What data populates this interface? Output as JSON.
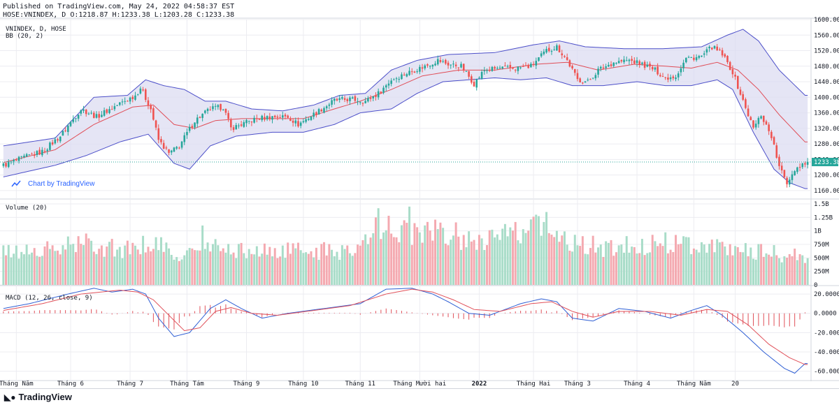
{
  "header": {
    "published": "Published on TradingView.com, May 24, 2022 04:58:37 EST",
    "ohlc": "HOSE:VNINDEX, D O:1218.87 H:1233.38 L:1203.28 C:1233.38"
  },
  "colors": {
    "up": "#26a69a",
    "down": "#ef5350",
    "up_vol": "#a8dcc8",
    "down_vol": "#f4a9b0",
    "bb_band": "#4c4fc9",
    "bb_fill": "#dcdcf2",
    "bb_basis": "#e04d57",
    "macd": "#2f5fd4",
    "signal": "#e05059",
    "grid": "#ececf1",
    "price_line": "#26a69a"
  },
  "footer": {
    "brand": "TradingView"
  },
  "watermark": "Chart by TradingView",
  "chart_data": [
    {
      "type": "candlestick",
      "title": "VNINDEX, D, HOSE",
      "indicator": "BB (20, 2)",
      "ylim": [
        1140,
        1600
      ],
      "yticks": [
        1160,
        1200,
        1240,
        1280,
        1320,
        1360,
        1400,
        1440,
        1480,
        1520,
        1560,
        1600
      ],
      "ytick_labels": [
        "1160.00",
        "1200.00",
        "1240.00",
        "1280.00",
        "1320.00",
        "1360.00",
        "1400.00",
        "1440.00",
        "1480.00",
        "1520.00",
        "1560.00",
        "1600.00"
      ],
      "last_price": 1233.38,
      "last_price_label": "1233.38",
      "price_anchors": [
        [
          0,
          1225
        ],
        [
          8,
          1245
        ],
        [
          15,
          1260
        ],
        [
          22,
          1300
        ],
        [
          30,
          1370
        ],
        [
          36,
          1350
        ],
        [
          44,
          1380
        ],
        [
          51,
          1405
        ],
        [
          53,
          1425
        ],
        [
          57,
          1370
        ],
        [
          60,
          1290
        ],
        [
          64,
          1255
        ],
        [
          68,
          1275
        ],
        [
          74,
          1340
        ],
        [
          80,
          1370
        ],
        [
          85,
          1375
        ],
        [
          88,
          1320
        ],
        [
          92,
          1330
        ],
        [
          98,
          1345
        ],
        [
          104,
          1350
        ],
        [
          110,
          1350
        ],
        [
          114,
          1330
        ],
        [
          122,
          1365
        ],
        [
          128,
          1392
        ],
        [
          134,
          1395
        ],
        [
          140,
          1390
        ],
        [
          145,
          1410
        ],
        [
          150,
          1445
        ],
        [
          157,
          1465
        ],
        [
          163,
          1480
        ],
        [
          168,
          1495
        ],
        [
          172,
          1485
        ],
        [
          177,
          1480
        ],
        [
          182,
          1435
        ],
        [
          186,
          1470
        ],
        [
          192,
          1475
        ],
        [
          198,
          1475
        ],
        [
          204,
          1480
        ],
        [
          210,
          1520
        ],
        [
          214,
          1530
        ],
        [
          218,
          1495
        ],
        [
          222,
          1445
        ],
        [
          226,
          1440
        ],
        [
          230,
          1470
        ],
        [
          236,
          1490
        ],
        [
          242,
          1495
        ],
        [
          247,
          1485
        ],
        [
          252,
          1470
        ],
        [
          256,
          1450
        ],
        [
          260,
          1455
        ],
        [
          264,
          1500
        ],
        [
          270,
          1505
        ],
        [
          274,
          1530
        ],
        [
          278,
          1510
        ],
        [
          282,
          1465
        ],
        [
          286,
          1390
        ],
        [
          290,
          1320
        ],
        [
          293,
          1355
        ],
        [
          297,
          1300
        ],
        [
          300,
          1220
        ],
        [
          303,
          1180
        ],
        [
          306,
          1215
        ],
        [
          310,
          1233.38
        ]
      ],
      "bb_upper_anchors": [
        [
          0,
          1275
        ],
        [
          20,
          1295
        ],
        [
          35,
          1400
        ],
        [
          48,
          1405
        ],
        [
          55,
          1445
        ],
        [
          62,
          1430
        ],
        [
          70,
          1420
        ],
        [
          78,
          1390
        ],
        [
          86,
          1390
        ],
        [
          96,
          1370
        ],
        [
          108,
          1365
        ],
        [
          120,
          1380
        ],
        [
          130,
          1405
        ],
        [
          140,
          1410
        ],
        [
          150,
          1470
        ],
        [
          160,
          1495
        ],
        [
          172,
          1510
        ],
        [
          190,
          1515
        ],
        [
          205,
          1535
        ],
        [
          215,
          1545
        ],
        [
          225,
          1530
        ],
        [
          240,
          1525
        ],
        [
          255,
          1525
        ],
        [
          270,
          1530
        ],
        [
          280,
          1560
        ],
        [
          286,
          1575
        ],
        [
          292,
          1545
        ],
        [
          300,
          1470
        ],
        [
          310,
          1405
        ]
      ],
      "bb_basis_anchors": [
        [
          0,
          1232
        ],
        [
          20,
          1265
        ],
        [
          35,
          1330
        ],
        [
          50,
          1375
        ],
        [
          58,
          1380
        ],
        [
          66,
          1330
        ],
        [
          74,
          1320
        ],
        [
          82,
          1340
        ],
        [
          92,
          1345
        ],
        [
          104,
          1345
        ],
        [
          116,
          1345
        ],
        [
          128,
          1370
        ],
        [
          138,
          1390
        ],
        [
          150,
          1420
        ],
        [
          162,
          1455
        ],
        [
          176,
          1470
        ],
        [
          190,
          1470
        ],
        [
          206,
          1485
        ],
        [
          218,
          1490
        ],
        [
          230,
          1470
        ],
        [
          244,
          1485
        ],
        [
          256,
          1480
        ],
        [
          266,
          1475
        ],
        [
          276,
          1490
        ],
        [
          284,
          1470
        ],
        [
          292,
          1420
        ],
        [
          300,
          1355
        ],
        [
          310,
          1285
        ]
      ],
      "bb_lower_anchors": [
        [
          0,
          1195
        ],
        [
          20,
          1225
        ],
        [
          32,
          1250
        ],
        [
          45,
          1285
        ],
        [
          56,
          1305
        ],
        [
          66,
          1230
        ],
        [
          72,
          1215
        ],
        [
          80,
          1275
        ],
        [
          90,
          1300
        ],
        [
          104,
          1310
        ],
        [
          116,
          1310
        ],
        [
          128,
          1330
        ],
        [
          138,
          1360
        ],
        [
          150,
          1370
        ],
        [
          160,
          1410
        ],
        [
          170,
          1440
        ],
        [
          180,
          1445
        ],
        [
          190,
          1450
        ],
        [
          200,
          1445
        ],
        [
          210,
          1450
        ],
        [
          220,
          1430
        ],
        [
          232,
          1430
        ],
        [
          245,
          1440
        ],
        [
          256,
          1430
        ],
        [
          266,
          1430
        ],
        [
          276,
          1445
        ],
        [
          282,
          1420
        ],
        [
          290,
          1310
        ],
        [
          298,
          1215
        ],
        [
          304,
          1180
        ],
        [
          310,
          1165
        ]
      ]
    },
    {
      "type": "bar",
      "title": "Volume (20)",
      "ylim": [
        0,
        1500000000
      ],
      "yticks": [
        0,
        250000000,
        500000000,
        750000000,
        1000000000,
        1250000000,
        1500000000
      ],
      "ytick_labels": [
        "0",
        "250M",
        "500M",
        "750M",
        "1B",
        "1.25B",
        "1.5B"
      ],
      "volume_anchors": [
        [
          0,
          600000000
        ],
        [
          20,
          650000000
        ],
        [
          30,
          780000000
        ],
        [
          50,
          650000000
        ],
        [
          58,
          820000000
        ],
        [
          66,
          520000000
        ],
        [
          80,
          700000000
        ],
        [
          96,
          620000000
        ],
        [
          110,
          640000000
        ],
        [
          130,
          620000000
        ],
        [
          143,
          850000000
        ],
        [
          150,
          1100000000
        ],
        [
          160,
          950000000
        ],
        [
          170,
          1000000000
        ],
        [
          180,
          850000000
        ],
        [
          190,
          900000000
        ],
        [
          200,
          950000000
        ],
        [
          210,
          1050000000
        ],
        [
          220,
          750000000
        ],
        [
          235,
          700000000
        ],
        [
          250,
          750000000
        ],
        [
          262,
          820000000
        ],
        [
          275,
          700000000
        ],
        [
          290,
          650000000
        ],
        [
          310,
          500000000
        ]
      ],
      "volume_spikes": [
        [
          77,
          1100000000
        ],
        [
          145,
          1420000000
        ],
        [
          157,
          1450000000
        ],
        [
          144,
          1250000000
        ],
        [
          206,
          1300000000
        ],
        [
          210,
          1350000000
        ]
      ]
    },
    {
      "type": "line",
      "title": "MACD (12, 26, close, 9)",
      "ylim": [
        -66,
        28
      ],
      "yticks": [
        20,
        0,
        -20,
        -40,
        -60
      ],
      "ytick_labels": [
        "20.0000",
        "0.0000",
        "-20.0000",
        "-40.0000",
        "-60.0000"
      ],
      "series": [
        {
          "name": "MACD",
          "anchors": [
            [
              0,
              5
            ],
            [
              10,
              10
            ],
            [
              25,
              20
            ],
            [
              35,
              26
            ],
            [
              42,
              22
            ],
            [
              50,
              25
            ],
            [
              55,
              20
            ],
            [
              60,
              -5
            ],
            [
              66,
              -24
            ],
            [
              72,
              -20
            ],
            [
              80,
              5
            ],
            [
              86,
              14
            ],
            [
              92,
              5
            ],
            [
              100,
              -5
            ],
            [
              110,
              0
            ],
            [
              124,
              5
            ],
            [
              138,
              10
            ],
            [
              148,
              25
            ],
            [
              158,
              26
            ],
            [
              166,
              20
            ],
            [
              172,
              12
            ],
            [
              180,
              0
            ],
            [
              188,
              -2
            ],
            [
              200,
              10
            ],
            [
              208,
              15
            ],
            [
              214,
              12
            ],
            [
              220,
              -5
            ],
            [
              228,
              -8
            ],
            [
              238,
              5
            ],
            [
              248,
              2
            ],
            [
              258,
              -5
            ],
            [
              266,
              3
            ],
            [
              272,
              8
            ],
            [
              278,
              -2
            ],
            [
              286,
              -20
            ],
            [
              294,
              -40
            ],
            [
              302,
              -57
            ],
            [
              306,
              -62
            ],
            [
              310,
              -52
            ]
          ]
        },
        {
          "name": "Signal",
          "anchors": [
            [
              0,
              3
            ],
            [
              15,
              10
            ],
            [
              30,
              20
            ],
            [
              45,
              24
            ],
            [
              52,
              22
            ],
            [
              58,
              14
            ],
            [
              64,
              -2
            ],
            [
              70,
              -18
            ],
            [
              76,
              -15
            ],
            [
              82,
              2
            ],
            [
              88,
              6
            ],
            [
              96,
              0
            ],
            [
              106,
              -2
            ],
            [
              120,
              3
            ],
            [
              134,
              8
            ],
            [
              148,
              20
            ],
            [
              158,
              25
            ],
            [
              166,
              22
            ],
            [
              174,
              14
            ],
            [
              182,
              4
            ],
            [
              192,
              2
            ],
            [
              204,
              10
            ],
            [
              212,
              12
            ],
            [
              220,
              2
            ],
            [
              228,
              -4
            ],
            [
              238,
              2
            ],
            [
              250,
              2
            ],
            [
              262,
              -2
            ],
            [
              272,
              4
            ],
            [
              280,
              2
            ],
            [
              288,
              -12
            ],
            [
              296,
              -32
            ],
            [
              304,
              -46
            ],
            [
              310,
              -53
            ]
          ]
        }
      ]
    }
  ],
  "time_axis": {
    "labels": [
      {
        "text": "Tháng Năm",
        "index": 5,
        "bold": false
      },
      {
        "text": "Tháng 6",
        "index": 26,
        "bold": false
      },
      {
        "text": "Tháng 7",
        "index": 49,
        "bold": false
      },
      {
        "text": "Tháng Tám",
        "index": 71,
        "bold": false
      },
      {
        "text": "Tháng 9",
        "index": 94,
        "bold": false
      },
      {
        "text": "Tháng 10",
        "index": 116,
        "bold": false
      },
      {
        "text": "Tháng 11",
        "index": 138,
        "bold": false
      },
      {
        "text": "Tháng Mười hai",
        "index": 161,
        "bold": false
      },
      {
        "text": "2022",
        "index": 184,
        "bold": true
      },
      {
        "text": "Tháng Hai",
        "index": 205,
        "bold": false
      },
      {
        "text": "Tháng 3",
        "index": 222,
        "bold": false
      },
      {
        "text": "Tháng 4",
        "index": 245,
        "bold": false
      },
      {
        "text": "Tháng Năm",
        "index": 267,
        "bold": false
      },
      {
        "text": "20",
        "index": 283,
        "bold": false
      }
    ]
  }
}
